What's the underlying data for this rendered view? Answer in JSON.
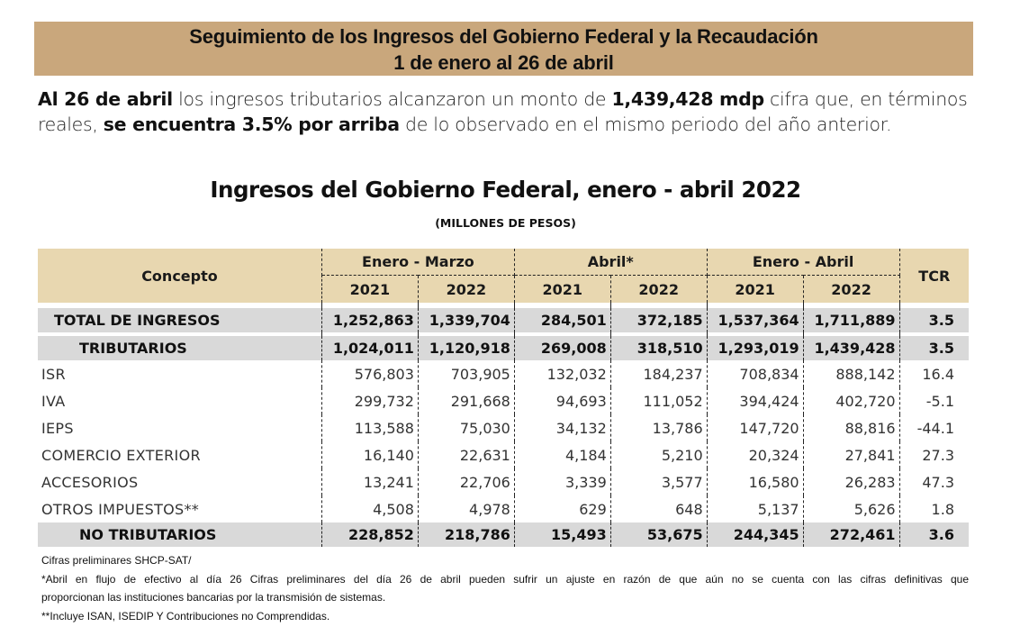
{
  "banner": {
    "line1": "Seguimiento de los Ingresos del Gobierno Federal y la Recaudación",
    "line2": "1 de enero al 26 de abril"
  },
  "intro": {
    "b1": "Al 26 de abril",
    "t1": " los ingresos tributarios alcanzaron un monto de ",
    "b2": "1,439,428 mdp",
    "t2": " cifra que, en términos reales, ",
    "b3": "se encuentra 3.5% por arriba",
    "t3": " de lo observado en el mismo periodo del año anterior."
  },
  "table_title": "Ingresos del Gobierno Federal, enero - abril 2022",
  "table_subtitle": "(MILLONES DE PESOS)",
  "table": {
    "header": {
      "concepto": "Concepto",
      "groups": [
        "Enero - Marzo",
        "Abril*",
        "Enero - Abril"
      ],
      "years": [
        "2021",
        "2022",
        "2021",
        "2022",
        "2021",
        "2022"
      ],
      "tcr": "TCR"
    },
    "rows": [
      {
        "concepto": "TOTAL DE INGRESOS",
        "values": [
          "1,252,863",
          "1,339,704",
          "284,501",
          "372,185",
          "1,537,364",
          "1,711,889"
        ],
        "tcr": "3.5"
      },
      {
        "concepto": "TRIBUTARIOS",
        "values": [
          "1,024,011",
          "1,120,918",
          "269,008",
          "318,510",
          "1,293,019",
          "1,439,428"
        ],
        "tcr": "3.5"
      },
      {
        "concepto": "ISR",
        "values": [
          "576,803",
          "703,905",
          "132,032",
          "184,237",
          "708,834",
          "888,142"
        ],
        "tcr": "16.4"
      },
      {
        "concepto": "IVA",
        "values": [
          "299,732",
          "291,668",
          "94,693",
          "111,052",
          "394,424",
          "402,720"
        ],
        "tcr": "-5.1"
      },
      {
        "concepto": "IEPS",
        "values": [
          "113,588",
          "75,030",
          "34,132",
          "13,786",
          "147,720",
          "88,816"
        ],
        "tcr": "-44.1"
      },
      {
        "concepto": "COMERCIO EXTERIOR",
        "values": [
          "16,140",
          "22,631",
          "4,184",
          "5,210",
          "20,324",
          "27,841"
        ],
        "tcr": "27.3"
      },
      {
        "concepto": "ACCESORIOS",
        "values": [
          "13,241",
          "22,706",
          "3,339",
          "3,577",
          "16,580",
          "26,283"
        ],
        "tcr": "47.3"
      },
      {
        "concepto": "OTROS IMPUESTOS**",
        "values": [
          "4,508",
          "4,978",
          "629",
          "648",
          "5,137",
          "5,626"
        ],
        "tcr": "1.8"
      },
      {
        "concepto": "NO TRIBUTARIOS",
        "values": [
          "228,852",
          "218,786",
          "15,493",
          "53,675",
          "244,345",
          "272,461"
        ],
        "tcr": "3.6"
      }
    ]
  },
  "notes": {
    "n1": "Cifras preliminares SHCP-SAT/",
    "n2a": "*Abril en flujo de efectivo al día 26 Cifras preliminares del día 26 de abril pueden sufrir un ajuste en razón de que aún no se cuenta con las cifras definitivas que",
    "n2b": "proporcionan las instituciones bancarias por la transmisión de sistemas.",
    "n3": "**Incluye ISAN, ISEDIP Y Contribuciones no Comprendidas."
  },
  "colors": {
    "banner": "#c9a77c",
    "header": "#e8d7b0",
    "total_rows": "#d9d9d9"
  }
}
